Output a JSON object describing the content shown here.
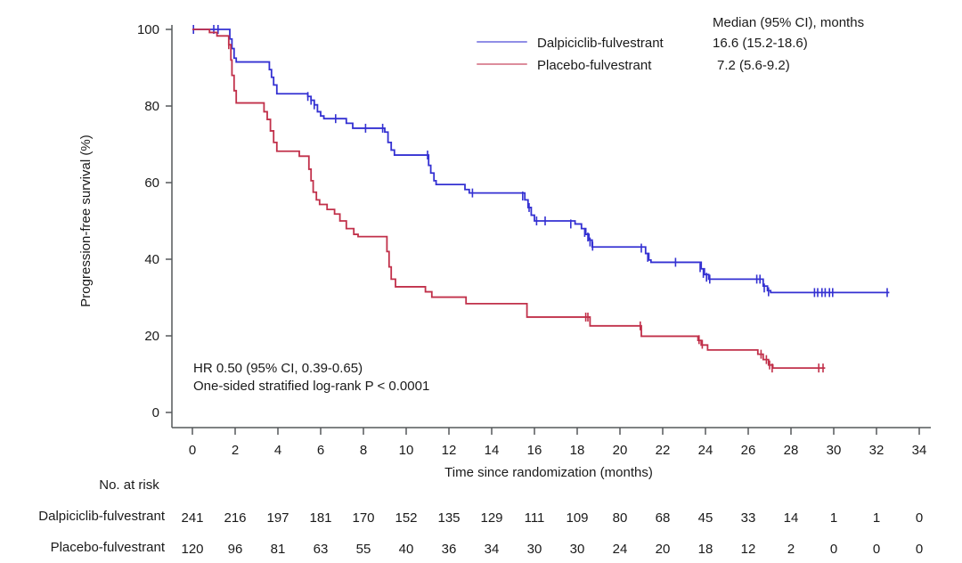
{
  "chart_data": {
    "type": "line",
    "subtype": "kaplan-meier-step",
    "title": "",
    "xlabel": "Time since randomization (months)",
    "ylabel": "Progression-free survival (%)",
    "xlim": [
      0,
      34
    ],
    "ylim": [
      0,
      100
    ],
    "xticks": [
      0,
      2,
      4,
      6,
      8,
      10,
      12,
      14,
      16,
      18,
      20,
      22,
      24,
      26,
      28,
      30,
      32,
      34
    ],
    "yticks": [
      0,
      20,
      40,
      60,
      80,
      100
    ],
    "grid": false,
    "legend_position": "top-right",
    "median_header": "Median (95% CI), months",
    "annotation": {
      "line1": "HR 0.50 (95% CI, 0.39-0.65)",
      "line2": "One-sided stratified log-rank P < 0.0001"
    },
    "axis_color": "#55585a",
    "text_color": "#1a1a1a",
    "series": [
      {
        "name": "Dalpiciclib-fulvestrant",
        "color": "#3431d2",
        "median_ci": "16.6 (15.2-18.6)",
        "start": [
          0,
          100
        ],
        "end_time": 32.6,
        "steps": [
          [
            1.75,
            97.5
          ],
          [
            1.85,
            95
          ],
          [
            1.95,
            92.5
          ],
          [
            2.05,
            91.5
          ],
          [
            3.6,
            89.5
          ],
          [
            3.7,
            87.5
          ],
          [
            3.8,
            85.5
          ],
          [
            3.95,
            83.2
          ],
          [
            5.4,
            82.5
          ],
          [
            5.55,
            81.5
          ],
          [
            5.7,
            80.3
          ],
          [
            5.85,
            78.5
          ],
          [
            6.0,
            77.4
          ],
          [
            6.15,
            76.7
          ],
          [
            7.2,
            75.5
          ],
          [
            7.5,
            74.2
          ],
          [
            9.0,
            73.2
          ],
          [
            9.15,
            70.5
          ],
          [
            9.3,
            68.5
          ],
          [
            9.45,
            67.2
          ],
          [
            11.05,
            64.5
          ],
          [
            11.15,
            62.5
          ],
          [
            11.3,
            60.5
          ],
          [
            11.4,
            59.5
          ],
          [
            12.75,
            58.2
          ],
          [
            12.95,
            57.3
          ],
          [
            15.55,
            55.5
          ],
          [
            15.7,
            53.5
          ],
          [
            15.85,
            51.5
          ],
          [
            16.0,
            50.0
          ],
          [
            17.9,
            49.2
          ],
          [
            18.2,
            48.0
          ],
          [
            18.4,
            46.5
          ],
          [
            18.55,
            45.0
          ],
          [
            18.7,
            43.2
          ],
          [
            21.2,
            41.5
          ],
          [
            21.35,
            39.8
          ],
          [
            21.45,
            39.2
          ],
          [
            23.8,
            37.5
          ],
          [
            23.95,
            36.0
          ],
          [
            24.15,
            34.8
          ],
          [
            26.7,
            33.0
          ],
          [
            26.9,
            31.8
          ],
          [
            27.05,
            31.3
          ]
        ],
        "censors": [
          [
            0.05,
            100
          ],
          [
            1.0,
            100
          ],
          [
            1.2,
            100
          ],
          [
            5.4,
            82.5
          ],
          [
            5.55,
            81.5
          ],
          [
            5.7,
            80.3
          ],
          [
            6.7,
            76.7
          ],
          [
            8.1,
            74.2
          ],
          [
            8.9,
            74.2
          ],
          [
            11.0,
            67.2
          ],
          [
            13.1,
            57.3
          ],
          [
            15.45,
            56.5
          ],
          [
            15.75,
            53.5
          ],
          [
            16.1,
            50
          ],
          [
            16.5,
            50
          ],
          [
            17.7,
            49.2
          ],
          [
            18.35,
            47
          ],
          [
            18.5,
            45.8
          ],
          [
            18.6,
            44.5
          ],
          [
            18.72,
            43.4
          ],
          [
            21.0,
            42.9
          ],
          [
            21.3,
            40.5
          ],
          [
            22.6,
            39.2
          ],
          [
            23.75,
            37.8
          ],
          [
            23.9,
            36.3
          ],
          [
            24.05,
            35.3
          ],
          [
            24.2,
            34.8
          ],
          [
            26.4,
            34.8
          ],
          [
            26.55,
            34.8
          ],
          [
            26.75,
            32.5
          ],
          [
            26.95,
            31.5
          ],
          [
            29.1,
            31.3
          ],
          [
            29.25,
            31.3
          ],
          [
            29.45,
            31.3
          ],
          [
            29.6,
            31.3
          ],
          [
            29.8,
            31.3
          ],
          [
            29.95,
            31.3
          ],
          [
            32.5,
            31.3
          ]
        ]
      },
      {
        "name": "Placebo-fulvestrant",
        "color": "#c1304a",
        "median_ci": "7.2 (5.6-9.2)",
        "start": [
          0,
          100
        ],
        "end_time": 29.6,
        "steps": [
          [
            0.8,
            99.2
          ],
          [
            1.15,
            98.3
          ],
          [
            1.7,
            96
          ],
          [
            1.8,
            92
          ],
          [
            1.85,
            88
          ],
          [
            1.95,
            84
          ],
          [
            2.05,
            80.8
          ],
          [
            3.35,
            78.5
          ],
          [
            3.5,
            76.5
          ],
          [
            3.65,
            73.5
          ],
          [
            3.8,
            70.5
          ],
          [
            3.95,
            68.2
          ],
          [
            5.0,
            66.9
          ],
          [
            5.45,
            63.5
          ],
          [
            5.55,
            60.5
          ],
          [
            5.65,
            57.5
          ],
          [
            5.8,
            55.5
          ],
          [
            5.95,
            54.3
          ],
          [
            6.3,
            53.0
          ],
          [
            6.65,
            51.8
          ],
          [
            6.9,
            50.0
          ],
          [
            7.2,
            48.0
          ],
          [
            7.55,
            46.5
          ],
          [
            7.75,
            45.9
          ],
          [
            9.1,
            42
          ],
          [
            9.2,
            38
          ],
          [
            9.3,
            34.8
          ],
          [
            9.5,
            32.8
          ],
          [
            10.9,
            31.5
          ],
          [
            11.2,
            30.1
          ],
          [
            12.8,
            28.4
          ],
          [
            15.65,
            24.9
          ],
          [
            18.6,
            22.6
          ],
          [
            21.0,
            19.9
          ],
          [
            23.65,
            18.8
          ],
          [
            23.8,
            17.6
          ],
          [
            24.1,
            16.3
          ],
          [
            26.45,
            15.2
          ],
          [
            26.7,
            13.8
          ],
          [
            26.95,
            12.4
          ],
          [
            27.15,
            11.6
          ]
        ],
        "censors": [
          [
            1.7,
            96
          ],
          [
            18.4,
            24.9
          ],
          [
            18.5,
            24.9
          ],
          [
            20.95,
            22.6
          ],
          [
            23.7,
            19.0
          ],
          [
            23.85,
            17.8
          ],
          [
            26.6,
            15.2
          ],
          [
            26.85,
            13.8
          ],
          [
            27.0,
            12.4
          ],
          [
            27.12,
            11.6
          ],
          [
            29.3,
            11.6
          ],
          [
            29.5,
            11.6
          ]
        ]
      }
    ],
    "at_risk": {
      "header": "No. at risk",
      "times": [
        0,
        2,
        4,
        6,
        8,
        10,
        12,
        14,
        16,
        18,
        20,
        22,
        24,
        26,
        28,
        30,
        32,
        34
      ],
      "rows": [
        {
          "name": "Dalpiciclib-fulvestrant",
          "counts": [
            241,
            216,
            197,
            181,
            170,
            152,
            135,
            129,
            111,
            109,
            80,
            68,
            45,
            33,
            14,
            1,
            1,
            0
          ]
        },
        {
          "name": "Placebo-fulvestrant",
          "counts": [
            120,
            96,
            81,
            63,
            55,
            40,
            36,
            34,
            30,
            30,
            24,
            20,
            18,
            12,
            2,
            0,
            0,
            0
          ]
        }
      ]
    }
  }
}
